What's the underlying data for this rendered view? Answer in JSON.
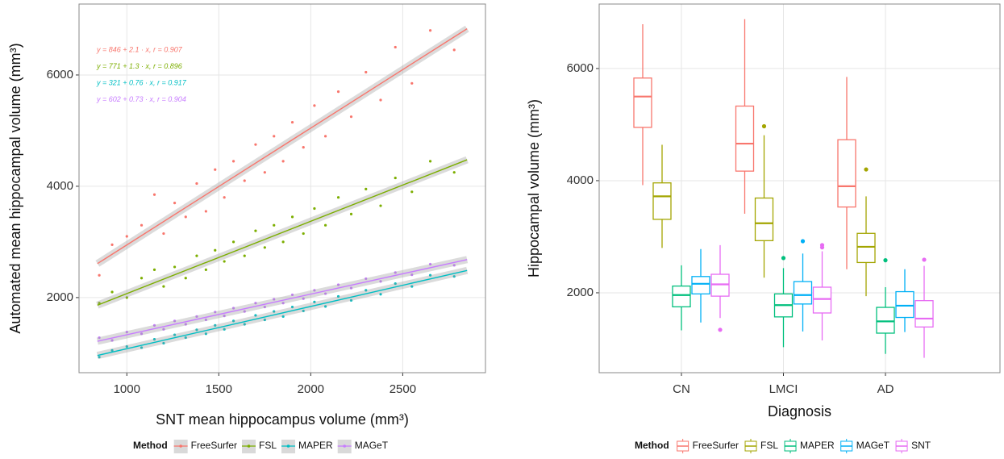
{
  "chart_data": [
    {
      "type": "scatter",
      "x_label": "SNT mean hippocampus volume (mm³)",
      "y_label": "Automated mean hippocampal volume (mm³)",
      "legend_title": "Method",
      "xlim": [
        740,
        2950
      ],
      "ylim": [
        650,
        7275
      ],
      "xticks": [
        1000,
        1500,
        2000,
        2500
      ],
      "yticks": [
        2000,
        4000,
        6000
      ],
      "grid": true,
      "legend": "bottom",
      "x": [
        850,
        920,
        1000,
        1080,
        1150,
        1200,
        1260,
        1320,
        1380,
        1430,
        1480,
        1530,
        1580,
        1640,
        1700,
        1750,
        1800,
        1850,
        1900,
        1960,
        2020,
        2080,
        2150,
        2220,
        2300,
        2380,
        2460,
        2550,
        2650,
        2780
      ],
      "series": [
        {
          "name": "FreeSurfer",
          "color": "#F8766D",
          "equation": "y = 846 + 2.1 · x,  r = 0.907",
          "values": [
            2400,
            2950,
            3100,
            3300,
            3850,
            3150,
            3700,
            3450,
            4050,
            3550,
            4300,
            3800,
            4450,
            4100,
            4750,
            4250,
            4900,
            4450,
            5150,
            4700,
            5450,
            4900,
            5700,
            5250,
            6050,
            5550,
            6500,
            5850,
            6800,
            6450
          ],
          "fit": {
            "x": [
              840,
              2850
            ],
            "values": [
              2610,
              6831
            ]
          }
        },
        {
          "name": "FSL",
          "color": "#7CAE00",
          "equation": "y = 771 + 1.3 · x,  r = 0.896",
          "values": [
            1900,
            2100,
            2000,
            2350,
            2500,
            2200,
            2550,
            2350,
            2750,
            2500,
            2850,
            2650,
            3000,
            2750,
            3200,
            2900,
            3300,
            3000,
            3450,
            3150,
            3600,
            3300,
            3800,
            3500,
            3950,
            3650,
            4150,
            3900,
            4450,
            4250
          ],
          "fit": {
            "x": [
              840,
              2850
            ],
            "values": [
              1863,
              4476
            ]
          }
        },
        {
          "name": "MAPER",
          "color": "#00BFC4",
          "equation": "y = 321 + 0.76 · x,  r = 0.917",
          "values": [
            930,
            1050,
            1120,
            1100,
            1250,
            1180,
            1330,
            1280,
            1420,
            1350,
            1500,
            1430,
            1580,
            1520,
            1680,
            1600,
            1750,
            1660,
            1830,
            1760,
            1920,
            1840,
            2020,
            1950,
            2130,
            2060,
            2250,
            2200,
            2400,
            2380
          ],
          "fit": {
            "x": [
              840,
              2850
            ],
            "values": [
              959,
              2487
            ]
          }
        },
        {
          "name": "MAGeT",
          "color": "#C77CFF",
          "equation": "y = 602 + 0.73 · x,  r = 0.904",
          "values": [
            1280,
            1230,
            1380,
            1350,
            1500,
            1430,
            1580,
            1520,
            1660,
            1600,
            1740,
            1670,
            1810,
            1750,
            1900,
            1830,
            1970,
            1900,
            2050,
            1980,
            2130,
            2070,
            2230,
            2170,
            2340,
            2290,
            2450,
            2410,
            2600,
            2580
          ],
          "fit": {
            "x": [
              840,
              2850
            ],
            "values": [
              1215,
              2683
            ]
          }
        }
      ]
    },
    {
      "type": "box",
      "x_label": "Diagnosis",
      "y_label": "Hippocampal volume (mm³)",
      "legend_title": "Method",
      "ylim": [
        575,
        7150
      ],
      "yticks": [
        2000,
        4000,
        6000
      ],
      "grid": true,
      "legend": "bottom",
      "categories": [
        "CN",
        "LMCI",
        "AD"
      ],
      "series": [
        {
          "name": "FreeSurfer",
          "color": "#F8766D",
          "values": [
            {
              "min": 3920,
              "q1": 4950,
              "median": 5500,
              "q3": 5830,
              "max": 6790,
              "outliers": []
            },
            {
              "min": 3410,
              "q1": 4170,
              "median": 4660,
              "q3": 5330,
              "max": 6880,
              "outliers": []
            },
            {
              "min": 2420,
              "q1": 3530,
              "median": 3900,
              "q3": 4730,
              "max": 5850,
              "outliers": []
            }
          ]
        },
        {
          "name": "FSL",
          "color": "#A3A500",
          "values": [
            {
              "min": 2800,
              "q1": 3310,
              "median": 3720,
              "q3": 3960,
              "max": 4640,
              "outliers": []
            },
            {
              "min": 2270,
              "q1": 2930,
              "median": 3240,
              "q3": 3690,
              "max": 4810,
              "outliers": [
                4970
              ]
            },
            {
              "min": 1940,
              "q1": 2540,
              "median": 2820,
              "q3": 3060,
              "max": 3720,
              "outliers": [
                4200
              ]
            }
          ]
        },
        {
          "name": "MAPER",
          "color": "#00BF7D",
          "values": [
            {
              "min": 1330,
              "q1": 1750,
              "median": 1960,
              "q3": 2120,
              "max": 2490,
              "outliers": []
            },
            {
              "min": 1030,
              "q1": 1570,
              "median": 1780,
              "q3": 1980,
              "max": 2440,
              "outliers": [
                2620
              ]
            },
            {
              "min": 910,
              "q1": 1280,
              "median": 1490,
              "q3": 1740,
              "max": 2100,
              "outliers": [
                2580
              ]
            }
          ]
        },
        {
          "name": "MAGeT",
          "color": "#00B0F6",
          "values": [
            {
              "min": 1470,
              "q1": 1980,
              "median": 2160,
              "q3": 2290,
              "max": 2780,
              "outliers": []
            },
            {
              "min": 1310,
              "q1": 1800,
              "median": 1960,
              "q3": 2200,
              "max": 2700,
              "outliers": [
                2920
              ]
            },
            {
              "min": 1300,
              "q1": 1560,
              "median": 1770,
              "q3": 2020,
              "max": 2420,
              "outliers": []
            }
          ]
        },
        {
          "name": "SNT",
          "color": "#E76BF3",
          "values": [
            {
              "min": 1550,
              "q1": 1940,
              "median": 2150,
              "q3": 2330,
              "max": 2850,
              "outliers": [
                1340
              ]
            },
            {
              "min": 1150,
              "q1": 1640,
              "median": 1890,
              "q3": 2100,
              "max": 2740,
              "outliers": [
                2810,
                2850
              ]
            },
            {
              "min": 840,
              "q1": 1390,
              "median": 1540,
              "q3": 1860,
              "max": 2480,
              "outliers": [
                2590
              ]
            }
          ]
        }
      ]
    }
  ]
}
